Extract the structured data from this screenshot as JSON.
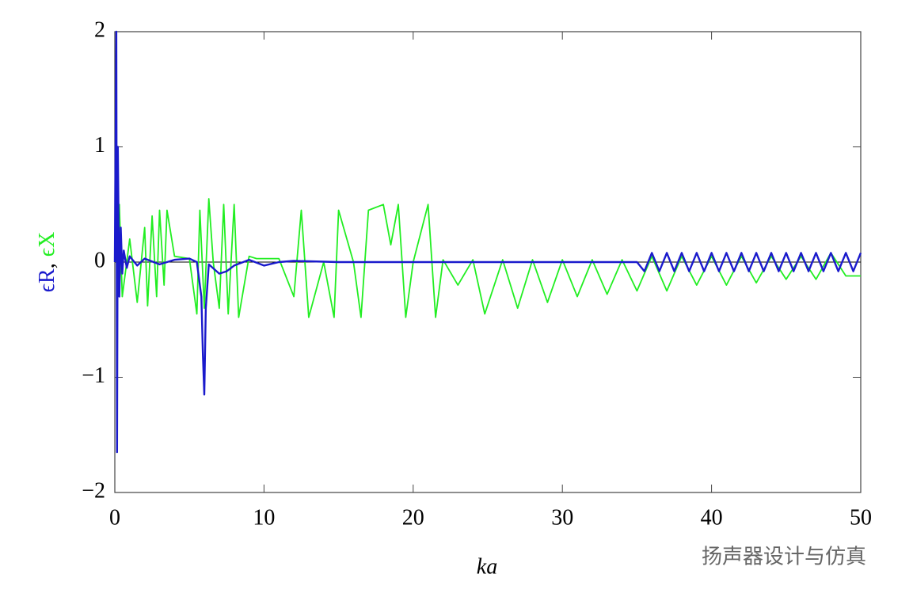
{
  "chart_data": {
    "type": "line",
    "xlabel": "ka",
    "ylabel_separator": ",",
    "watermark": "扬声器设计与仿真",
    "xlim": [
      0,
      50
    ],
    "xticks": [
      0,
      10,
      20,
      30,
      40,
      50
    ],
    "ylim": [
      -2,
      2
    ],
    "yticks": [
      {
        "value": -2,
        "label": "−2"
      },
      {
        "value": -1,
        "label": "−1"
      },
      0,
      1,
      2
    ],
    "zero_line": true,
    "series": [
      {
        "name": "ϵX",
        "color": "#22ee22",
        "x": [
          0,
          0.3,
          0.5,
          1,
          1.5,
          2,
          2.2,
          2.5,
          2.8,
          3,
          3.3,
          3.5,
          4,
          5,
          5.5,
          5.7,
          6,
          6.3,
          6.6,
          7,
          7.3,
          7.6,
          8,
          8.3,
          9,
          9.5,
          10,
          11,
          12,
          12.5,
          13,
          14,
          14.7,
          15,
          16,
          16.5,
          17,
          18,
          18.5,
          19,
          19.5,
          20,
          21,
          21.5,
          22,
          23,
          24,
          24.8,
          26,
          27,
          28,
          29,
          30,
          31,
          32,
          33,
          34,
          35,
          36,
          37,
          38,
          39,
          40,
          41,
          42,
          43,
          44,
          45,
          46,
          47,
          48,
          49,
          50
        ],
        "values": [
          0,
          0.5,
          -0.3,
          0.2,
          -0.35,
          0.3,
          -0.38,
          0.4,
          -0.3,
          0.45,
          -0.2,
          0.45,
          0.05,
          0.03,
          -0.45,
          0.45,
          -0.4,
          0.55,
          0,
          -0.4,
          0.5,
          -0.45,
          0.5,
          -0.48,
          0.05,
          0.03,
          0.03,
          0.03,
          -0.3,
          0.45,
          -0.48,
          0,
          -0.48,
          0.45,
          0,
          -0.48,
          0.45,
          0.5,
          0.15,
          0.5,
          -0.48,
          0,
          0.5,
          -0.48,
          0.02,
          -0.2,
          0.02,
          -0.45,
          0.02,
          -0.4,
          0.02,
          -0.35,
          0.02,
          -0.3,
          0.02,
          -0.28,
          0.02,
          -0.25,
          0.05,
          -0.25,
          0.05,
          -0.2,
          0.05,
          -0.2,
          0.05,
          -0.18,
          0.05,
          -0.15,
          0.05,
          -0.15,
          0.08,
          -0.12,
          -0.12
        ]
      },
      {
        "name": "ϵR",
        "color": "#1a1acc",
        "x": [
          0,
          0.1,
          0.15,
          0.2,
          0.3,
          0.4,
          0.5,
          0.6,
          0.8,
          1,
          1.5,
          2,
          3,
          4,
          5,
          5.5,
          5.8,
          5.9,
          6.0,
          6.1,
          6.3,
          7,
          7.5,
          8,
          9,
          10,
          11,
          12,
          15,
          20,
          25,
          30,
          35,
          35.5,
          36,
          36.5,
          37,
          37.5,
          38,
          38.5,
          39,
          39.5,
          40,
          40.5,
          41,
          41.5,
          42,
          42.5,
          43,
          43.5,
          44,
          44.5,
          45,
          45.5,
          46,
          46.5,
          47,
          47.5,
          48,
          48.5,
          49,
          49.5,
          50
        ],
        "values": [
          0,
          2,
          -1.65,
          1,
          -0.3,
          0.3,
          -0.1,
          0.1,
          -0.05,
          0.05,
          -0.03,
          0.03,
          -0.02,
          0.02,
          0.03,
          0,
          -0.3,
          -0.8,
          -1.15,
          -0.4,
          -0.02,
          -0.1,
          -0.08,
          -0.03,
          0.02,
          -0.03,
          0,
          0.01,
          0,
          0,
          0,
          0,
          0,
          -0.08,
          0.08,
          -0.08,
          0.08,
          -0.08,
          0.08,
          -0.08,
          0.08,
          -0.08,
          0.08,
          -0.08,
          0.08,
          -0.08,
          0.08,
          -0.08,
          0.08,
          -0.08,
          0.08,
          -0.08,
          0.08,
          -0.08,
          0.08,
          -0.08,
          0.08,
          -0.08,
          0.08,
          -0.08,
          0.08,
          -0.08,
          0.08
        ]
      }
    ]
  }
}
